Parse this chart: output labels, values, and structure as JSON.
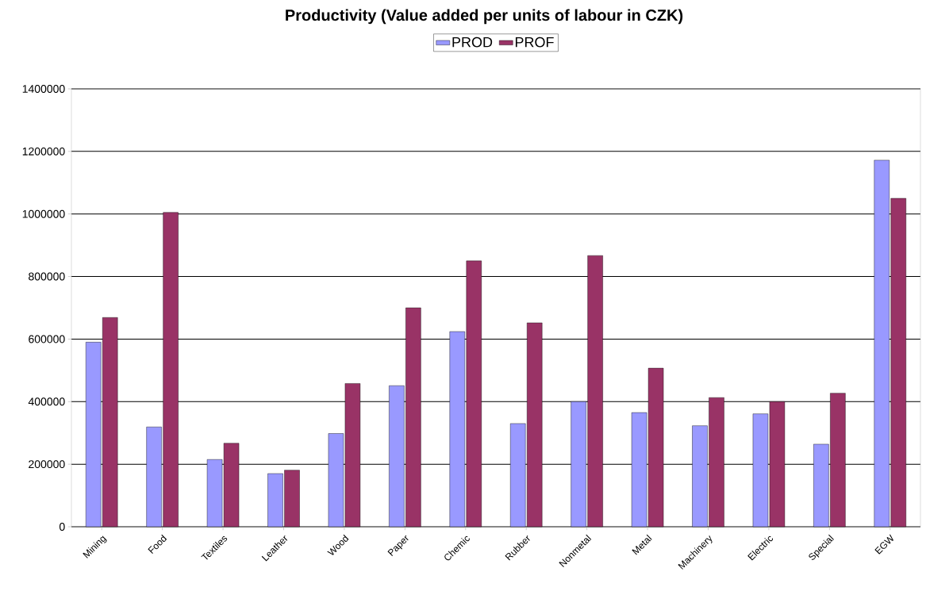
{
  "chart_data": {
    "type": "bar",
    "title": "Productivity (Value added per units of labour in CZK)",
    "categories": [
      "Mining",
      "Food",
      "Textiles",
      "Leather",
      "Wood",
      "Paper",
      "Chemic",
      "Rubber",
      "Nonmetal",
      "Metal",
      "Machinery",
      "Electric",
      "Special",
      "EGW"
    ],
    "series": [
      {
        "name": "PROD",
        "color": "#9999ff",
        "values": [
          590000,
          319000,
          215000,
          170000,
          298000,
          451000,
          624000,
          330000,
          400000,
          365000,
          323000,
          361000,
          264000,
          1172000
        ]
      },
      {
        "name": "PROF",
        "color": "#993366",
        "values": [
          669000,
          1005000,
          267000,
          181000,
          458000,
          700000,
          850000,
          652000,
          867000,
          507000,
          413000,
          400000,
          427000,
          1050000
        ]
      }
    ],
    "ylim": [
      0,
      1400000
    ],
    "yticks": [
      0,
      200000,
      400000,
      600000,
      800000,
      1000000,
      1200000,
      1400000
    ],
    "grid": "y",
    "legend": "top"
  }
}
